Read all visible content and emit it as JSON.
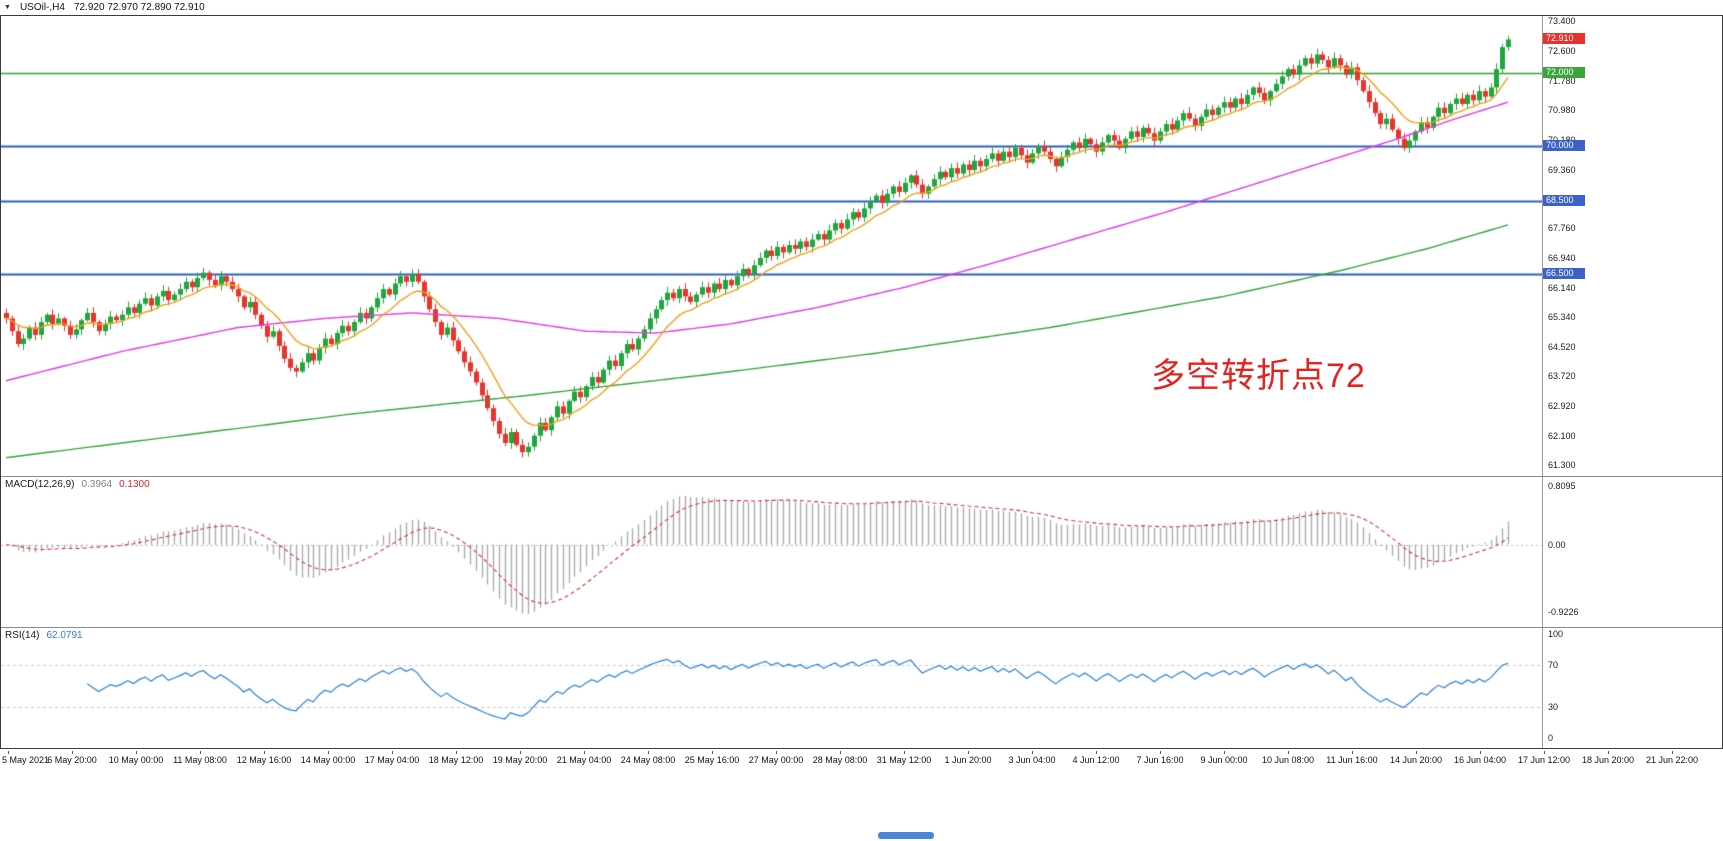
{
  "header": {
    "dropdown_icon": "▼",
    "symbol": "USOil-,H4",
    "ohlc": "72.920 72.970 72.890 72.910"
  },
  "chart_data": {
    "type": "candlestick",
    "title": "USOil-,H4",
    "x_tick_labels": [
      "5 May 2021",
      "6 May 20:00",
      "10 May 00:00",
      "11 May 08:00",
      "12 May 16:00",
      "14 May 00:00",
      "17 May 04:00",
      "18 May 12:00",
      "19 May 20:00",
      "21 May 04:00",
      "24 May 08:00",
      "25 May 16:00",
      "27 May 00:00",
      "28 May 08:00",
      "31 May 12:00",
      "1 Jun 20:00",
      "3 Jun 04:00",
      "4 Jun 12:00",
      "7 Jun 16:00",
      "9 Jun 00:00",
      "10 Jun 08:00",
      "11 Jun 16:00",
      "14 Jun 20:00",
      "16 Jun 04:00",
      "17 Jun 12:00",
      "18 Jun 20:00",
      "21 Jun 22:00"
    ],
    "main": {
      "price_top": 73.55,
      "price_bottom": 61.0,
      "first_open": 65.45,
      "last_price": 72.91,
      "up_color": "#1fa73d",
      "down_color": "#e5352c",
      "annotation": "多空转折点72",
      "annotation_color": "#e42320",
      "y_tick_labels": [
        "73.400",
        "72.600",
        "71.780",
        "70.980",
        "70.180",
        "69.360",
        "67.760",
        "66.940",
        "66.140",
        "65.340",
        "64.520",
        "63.720",
        "62.920",
        "62.100",
        "61.300"
      ],
      "badges": [
        {
          "label": "72.910",
          "price": 72.91,
          "bg": "#e8312a"
        },
        {
          "label": "72.000",
          "price": 72.0,
          "bg": "#3aa63a"
        },
        {
          "label": "70.000",
          "price": 70.0,
          "bg": "#3a62c8"
        },
        {
          "label": "68.500",
          "price": 68.5,
          "bg": "#3a62c8"
        },
        {
          "label": "66.500",
          "price": 66.5,
          "bg": "#3a62c8"
        }
      ],
      "hlines": [
        {
          "price": 72.0,
          "color": "#2ea52e",
          "width": 1.5
        },
        {
          "price": 70.0,
          "color": "#2e5cc5",
          "width": 2
        },
        {
          "price": 68.5,
          "color": "#2e5cc5",
          "width": 2
        },
        {
          "price": 66.5,
          "color": "#2e5cc5",
          "width": 2
        }
      ],
      "closes": [
        65.3,
        64.95,
        64.6,
        64.75,
        65.05,
        64.85,
        65.2,
        65.4,
        65.15,
        65.3,
        65.1,
        64.85,
        65.0,
        65.25,
        65.45,
        65.2,
        64.95,
        65.15,
        65.35,
        65.25,
        65.4,
        65.6,
        65.45,
        65.7,
        65.85,
        65.65,
        65.9,
        66.05,
        65.8,
        65.95,
        66.1,
        66.3,
        66.15,
        66.4,
        66.55,
        66.35,
        66.2,
        66.45,
        66.3,
        66.1,
        65.9,
        65.6,
        65.75,
        65.4,
        65.1,
        64.8,
        64.95,
        64.55,
        64.2,
        63.95,
        63.85,
        64.1,
        64.35,
        64.15,
        64.5,
        64.75,
        64.6,
        64.9,
        65.1,
        64.95,
        65.2,
        65.45,
        65.3,
        65.6,
        65.85,
        66.1,
        65.95,
        66.25,
        66.45,
        66.3,
        66.5,
        66.3,
        65.9,
        65.55,
        65.2,
        64.85,
        65.05,
        64.7,
        64.4,
        64.1,
        63.85,
        63.55,
        63.2,
        62.85,
        62.5,
        62.15,
        61.9,
        62.2,
        61.85,
        61.65,
        61.8,
        62.1,
        62.45,
        62.25,
        62.6,
        62.9,
        62.7,
        63.05,
        63.3,
        63.15,
        63.45,
        63.7,
        63.55,
        63.9,
        64.15,
        64.0,
        64.35,
        64.6,
        64.45,
        64.75,
        65.0,
        65.3,
        65.55,
        65.8,
        66.0,
        65.85,
        66.1,
        65.9,
        65.75,
        65.95,
        66.15,
        66.0,
        66.25,
        66.1,
        66.35,
        66.2,
        66.45,
        66.65,
        66.5,
        66.75,
        66.95,
        67.15,
        67.0,
        67.25,
        67.1,
        67.3,
        67.2,
        67.4,
        67.25,
        67.45,
        67.6,
        67.45,
        67.7,
        67.9,
        67.75,
        68.0,
        68.2,
        68.05,
        68.3,
        68.5,
        68.65,
        68.45,
        68.7,
        68.9,
        68.75,
        69.0,
        69.2,
        68.95,
        68.7,
        68.9,
        69.1,
        69.3,
        69.15,
        69.4,
        69.25,
        69.5,
        69.35,
        69.6,
        69.45,
        69.65,
        69.8,
        69.6,
        69.85,
        69.7,
        69.95,
        69.75,
        69.55,
        69.8,
        70.0,
        69.85,
        69.65,
        69.45,
        69.7,
        69.9,
        70.1,
        69.95,
        70.2,
        70.05,
        69.85,
        70.1,
        70.3,
        70.15,
        69.95,
        70.2,
        70.4,
        70.25,
        70.5,
        70.35,
        70.15,
        70.4,
        70.6,
        70.45,
        70.7,
        70.9,
        70.75,
        70.55,
        70.8,
        71.0,
        70.85,
        71.05,
        71.2,
        71.05,
        71.3,
        71.15,
        71.4,
        71.6,
        71.45,
        71.25,
        71.5,
        71.7,
        71.9,
        72.1,
        71.95,
        72.2,
        72.4,
        72.25,
        72.5,
        72.35,
        72.15,
        72.4,
        72.2,
        71.95,
        72.15,
        71.8,
        71.5,
        71.2,
        70.9,
        70.6,
        70.75,
        70.45,
        70.2,
        69.95,
        70.15,
        70.4,
        70.65,
        70.5,
        70.8,
        71.05,
        70.9,
        71.15,
        71.3,
        71.15,
        71.4,
        71.25,
        71.5,
        71.35,
        71.6,
        72.1,
        72.7,
        72.91
      ],
      "ma": {
        "orange": {
          "period": 10,
          "color": "#f0a01e"
        },
        "magenta": {
          "color": "#e23ae2",
          "anchors": [
            [
              0,
              63.6
            ],
            [
              20,
              64.4
            ],
            [
              40,
              65.05
            ],
            [
              55,
              65.3
            ],
            [
              70,
              65.45
            ],
            [
              85,
              65.3
            ],
            [
              100,
              64.95
            ],
            [
              112,
              64.9
            ],
            [
              125,
              65.15
            ],
            [
              140,
              65.6
            ],
            [
              155,
              66.15
            ],
            [
              170,
              66.8
            ],
            [
              185,
              67.5
            ],
            [
              200,
              68.2
            ],
            [
              215,
              68.95
            ],
            [
              228,
              69.6
            ],
            [
              240,
              70.2
            ],
            [
              250,
              70.75
            ],
            [
              259,
              71.2
            ]
          ]
        },
        "green": {
          "color": "#35a335",
          "anchors": [
            [
              0,
              61.5
            ],
            [
              30,
              62.1
            ],
            [
              60,
              62.7
            ],
            [
              90,
              63.2
            ],
            [
              120,
              63.75
            ],
            [
              150,
              64.35
            ],
            [
              180,
              65.05
            ],
            [
              210,
              65.9
            ],
            [
              230,
              66.6
            ],
            [
              245,
              67.2
            ],
            [
              259,
              67.85
            ]
          ]
        }
      }
    },
    "macd": {
      "label": "MACD(12,26,9)",
      "value_main": "0.3964",
      "value_signal": "0.1300",
      "fast": 12,
      "slow": 26,
      "signal_period": 9,
      "y_tick_labels": [
        "0.8095",
        "0.00",
        "-0.9226"
      ],
      "hist_color": "#a8a8a8",
      "signal_color": "#d23a32"
    },
    "rsi": {
      "label": "RSI(14)",
      "value": "62.0791",
      "period": 14,
      "y_tick_labels": [
        "100",
        "70",
        "30",
        "0"
      ],
      "levels": [
        70,
        30
      ],
      "line_color": "#2f80d0"
    }
  }
}
